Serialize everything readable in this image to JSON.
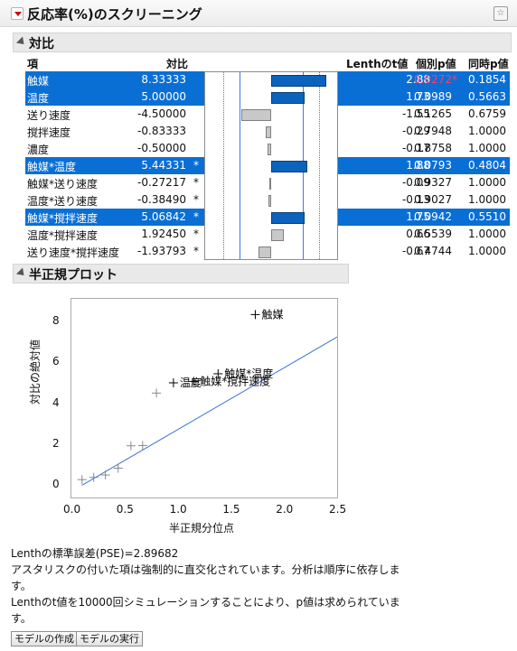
{
  "title": "反応率(%)のスクリーニング",
  "contrast_section": {
    "title": "対比",
    "headers": {
      "term": "項",
      "contrast": "対比",
      "lenth_t": "Lenthのt値",
      "individual_p": "個別p値",
      "simultaneous_p": "同時p値"
    },
    "rows": [
      {
        "term": "触媒",
        "contrast": "8.33333",
        "star": "",
        "lenth_t": "2.88",
        "individual_p": "0.0272*",
        "simultaneous_p": "0.1854",
        "selected": true,
        "p_highlight": true
      },
      {
        "term": "温度",
        "contrast": "5.00000",
        "star": "",
        "lenth_t": "1.73",
        "individual_p": "0.0989",
        "simultaneous_p": "0.5663",
        "selected": true,
        "p_highlight": false
      },
      {
        "term": "送り速度",
        "contrast": "-4.50000",
        "star": "",
        "lenth_t": "-1.55",
        "individual_p": "0.1265",
        "simultaneous_p": "0.6759",
        "selected": false,
        "p_highlight": false
      },
      {
        "term": "撹拌速度",
        "contrast": "-0.83333",
        "star": "",
        "lenth_t": "-0.29",
        "individual_p": "0.7948",
        "simultaneous_p": "1.0000",
        "selected": false,
        "p_highlight": false
      },
      {
        "term": "濃度",
        "contrast": "-0.50000",
        "star": "",
        "lenth_t": "-0.17",
        "individual_p": "0.8758",
        "simultaneous_p": "1.0000",
        "selected": false,
        "p_highlight": false
      },
      {
        "term": "触媒*温度",
        "contrast": "5.44331",
        "star": "*",
        "lenth_t": "1.88",
        "individual_p": "0.0793",
        "simultaneous_p": "0.4804",
        "selected": true,
        "p_highlight": false
      },
      {
        "term": "触媒*送り速度",
        "contrast": "-0.27217",
        "star": "*",
        "lenth_t": "-0.09",
        "individual_p": "0.9327",
        "simultaneous_p": "1.0000",
        "selected": false,
        "p_highlight": false
      },
      {
        "term": "温度*送り速度",
        "contrast": "-0.38490",
        "star": "*",
        "lenth_t": "-0.13",
        "individual_p": "0.9027",
        "simultaneous_p": "1.0000",
        "selected": false,
        "p_highlight": false
      },
      {
        "term": "触媒*撹拌速度",
        "contrast": "5.06842",
        "star": "*",
        "lenth_t": "1.75",
        "individual_p": "0.0942",
        "simultaneous_p": "0.5510",
        "selected": true,
        "p_highlight": false
      },
      {
        "term": "温度*撹拌速度",
        "contrast": "1.92450",
        "star": "*",
        "lenth_t": "0.66",
        "individual_p": "0.5539",
        "simultaneous_p": "1.0000",
        "selected": false,
        "p_highlight": false
      },
      {
        "term": "送り速度*撹拌速度",
        "contrast": "-1.93793",
        "star": "*",
        "lenth_t": "-0.67",
        "individual_p": "0.4744",
        "simultaneous_p": "1.0000",
        "selected": false,
        "p_highlight": false
      }
    ]
  },
  "half_normal_section": {
    "title": "半正規プロット"
  },
  "chart_data": [
    {
      "type": "bar",
      "title": "",
      "categories": [
        "触媒",
        "温度",
        "送り速度",
        "撹拌速度",
        "濃度",
        "触媒*温度",
        "触媒*送り速度",
        "温度*送り速度",
        "触媒*撹拌速度",
        "温度*撹拌速度",
        "送り速度*撹拌速度"
      ],
      "values": [
        8.33333,
        5.0,
        -4.5,
        -0.83333,
        -0.5,
        5.44331,
        -0.27217,
        -0.3849,
        5.06842,
        1.9245,
        -1.93793
      ],
      "xlim": [
        -10,
        10
      ],
      "reference_lines": [
        -4.8,
        4.8,
        -7.3,
        7.3
      ],
      "orientation": "horizontal"
    },
    {
      "type": "scatter",
      "xlabel": "半正規分位点",
      "ylabel": "対比の絶対値",
      "xlim": [
        0,
        2.5
      ],
      "ylim": [
        -0.6,
        9.1
      ],
      "xticks": [
        "0.0",
        "0.5",
        "1.0",
        "1.5",
        "2.0",
        "2.5"
      ],
      "yticks": [
        "0",
        "2",
        "4",
        "6",
        "8"
      ],
      "points": [
        {
          "x": 1.73,
          "y": 8.33333,
          "label": "触媒"
        },
        {
          "x": 1.38,
          "y": 5.44331,
          "label": "触媒*温度"
        },
        {
          "x": 1.15,
          "y": 5.06842,
          "label": "触媒*撹拌速度"
        },
        {
          "x": 0.96,
          "y": 5.0,
          "label": "温度"
        },
        {
          "x": 0.8,
          "y": 4.5,
          "label": ""
        },
        {
          "x": 0.67,
          "y": 1.93793,
          "label": ""
        },
        {
          "x": 0.56,
          "y": 1.9245,
          "label": ""
        },
        {
          "x": 0.44,
          "y": 0.83333,
          "label": ""
        },
        {
          "x": 0.32,
          "y": 0.5,
          "label": ""
        },
        {
          "x": 0.21,
          "y": 0.3849,
          "label": ""
        },
        {
          "x": 0.1,
          "y": 0.27217,
          "label": ""
        }
      ],
      "line": {
        "x": [
          0.1,
          2.5
        ],
        "y": [
          0.0,
          7.24
        ],
        "color": "#3a6fd8"
      }
    }
  ],
  "footer": {
    "pse": "Lenthの標準誤差(PSE)=2.89682",
    "note1a": "アスタリスクの付いた項は強制的に直交化されています。分析は順序に依存しま",
    "note1b": "す。",
    "note2a": "Lenthのt値を10000回シミュレーションすることにより、p値は求められていま",
    "note2b": "す。"
  },
  "buttons": {
    "make_model": "モデルの作成",
    "run_model": "モデルの実行"
  },
  "colors": {
    "selection": "#0a6fd5",
    "highlight_p": "#ff3b6b",
    "fit_line": "#3a6fd8"
  }
}
